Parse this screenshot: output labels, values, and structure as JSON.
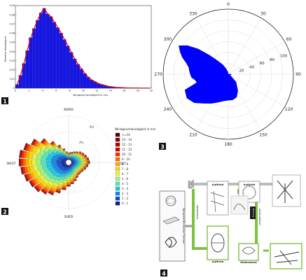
{
  "panels": [
    {
      "id": "1",
      "label": "1"
    },
    {
      "id": "2",
      "label": "2"
    },
    {
      "id": "3",
      "label": "3"
    },
    {
      "id": "4",
      "label": "4"
    }
  ],
  "chart_data": [
    {
      "type": "bar",
      "panel": "1",
      "title": "",
      "xlabel": "Windgeschwindigkeit in m/s",
      "ylabel": "Relative Haeufigkeit",
      "xlim": [
        0,
        20
      ],
      "ylim": [
        0,
        0.09
      ],
      "x_ticks": [
        "0",
        "2",
        "4",
        "6",
        "8",
        "10",
        "12",
        "14",
        "16",
        "18",
        "20"
      ],
      "y_ticks": [
        "0",
        "0.01",
        "0.02",
        "0.03",
        "0.04",
        "0.05",
        "0.06",
        "0.07",
        "0.08",
        "0.09"
      ],
      "bin_width": 0.5,
      "bin_starts": [
        0,
        0.5,
        1,
        1.5,
        2,
        2.5,
        3,
        3.5,
        4,
        4.5,
        5,
        5.5,
        6,
        6.5,
        7,
        7.5,
        8,
        8.5,
        9,
        9.5,
        10,
        10.5,
        11,
        11.5,
        12,
        12.5,
        13,
        13.5,
        14,
        14.5,
        15,
        15.5,
        16,
        16.5,
        17,
        17.5,
        18,
        18.5,
        19,
        19.5
      ],
      "values": [
        0.004,
        0.014,
        0.027,
        0.041,
        0.055,
        0.065,
        0.074,
        0.082,
        0.087,
        0.081,
        0.078,
        0.072,
        0.066,
        0.06,
        0.053,
        0.046,
        0.039,
        0.032,
        0.026,
        0.021,
        0.016,
        0.012,
        0.009,
        0.007,
        0.005,
        0.004,
        0.003,
        0.002,
        0.0015,
        0.001,
        0.0008,
        0.0006,
        0.0004,
        0.0003,
        0.0002,
        0.0002,
        0.0001,
        0.0001,
        0.0001,
        0.0001
      ],
      "fit_color": "#e8000b",
      "bar_color": "#1515e6"
    },
    {
      "type": "wind_rose",
      "panel": "2",
      "direction_labels": {
        "north": "NORD",
        "east": "OST",
        "south": "SUED",
        "west": "WEST"
      },
      "ring_labels": [
        "4%",
        "6%"
      ],
      "legend_title": "Windgeschwindigkeit in m/s",
      "legend": [
        {
          "label": ">=14",
          "color": "#5a0000"
        },
        {
          "label": "13 - 14",
          "color": "#8b0000"
        },
        {
          "label": "12 - 13",
          "color": "#b30000"
        },
        {
          "label": "11 - 12",
          "color": "#d80000"
        },
        {
          "label": "10 - 11",
          "color": "#ff2a00"
        },
        {
          "label": "9 - 10",
          "color": "#ff6a00"
        },
        {
          "label": "8 - 9",
          "color": "#ffa800"
        },
        {
          "label": "7 - 8",
          "color": "#ffd400"
        },
        {
          "label": "6 - 7",
          "color": "#e6f542"
        },
        {
          "label": "5 - 6",
          "color": "#9ef57a"
        },
        {
          "label": "4 - 5",
          "color": "#52e6b8"
        },
        {
          "label": "3 - 4",
          "color": "#17c8e6"
        },
        {
          "label": "2 - 3",
          "color": "#0f88ee"
        },
        {
          "label": "1 - 2",
          "color": "#0b4ed8"
        },
        {
          "label": "0 - 1",
          "color": "#001fa0"
        }
      ],
      "sector_dirs": [
        0,
        10,
        20,
        30,
        40,
        50,
        60,
        70,
        80,
        90,
        100,
        110,
        120,
        130,
        140,
        150,
        160,
        170,
        180,
        190,
        200,
        210,
        220,
        230,
        240,
        250,
        260,
        270,
        280,
        290,
        300,
        310,
        320,
        330,
        340,
        350
      ],
      "sector_totals": [
        0.9,
        1.0,
        1.1,
        1.3,
        1.5,
        1.8,
        2.0,
        2.2,
        2.4,
        2.5,
        2.3,
        2.1,
        1.9,
        1.8,
        1.8,
        2.0,
        2.3,
        2.6,
        2.9,
        3.4,
        4.0,
        4.6,
        5.0,
        5.4,
        5.6,
        5.9,
        6.2,
        6.4,
        6.4,
        6.0,
        5.3,
        4.3,
        3.2,
        2.3,
        1.6,
        1.1
      ]
    },
    {
      "type": "polar",
      "panel": "3",
      "angle_labels": [
        "0",
        "30",
        "60",
        "90",
        "120",
        "150",
        "180",
        "210",
        "240",
        "270",
        "300",
        "330"
      ],
      "radial_ticks": [
        "20",
        "40",
        "60",
        "80",
        "100"
      ],
      "rmax": 120,
      "fill_color": "#0000ff",
      "theta": [
        0,
        90,
        120,
        135,
        150,
        160,
        170,
        180,
        190,
        200,
        210,
        220,
        230,
        240,
        250,
        255,
        260,
        265,
        270,
        275,
        280,
        285,
        290,
        295,
        300,
        305,
        310,
        315,
        320,
        330,
        340,
        350
      ],
      "r": [
        0,
        6,
        4,
        20,
        35,
        45,
        48,
        48,
        50,
        55,
        62,
        70,
        82,
        88,
        85,
        60,
        62,
        68,
        70,
        72,
        74,
        80,
        90,
        98,
        105,
        92,
        72,
        50,
        35,
        20,
        10,
        3
      ]
    }
  ],
  "diagram": {
    "panel": "4",
    "vertical_label": "Beispiele Bionischer Formen",
    "top_left_label": "Auftrieb",
    "top_mid_label": "Auftrieb",
    "left_green_label": "Schnellaufer",
    "right_green_label": "Langsamlaufer",
    "bottom_left_label": "Auftrieb",
    "bottom_mid_label": "Widerstand",
    "dark_box_label": "Nutzung"
  }
}
